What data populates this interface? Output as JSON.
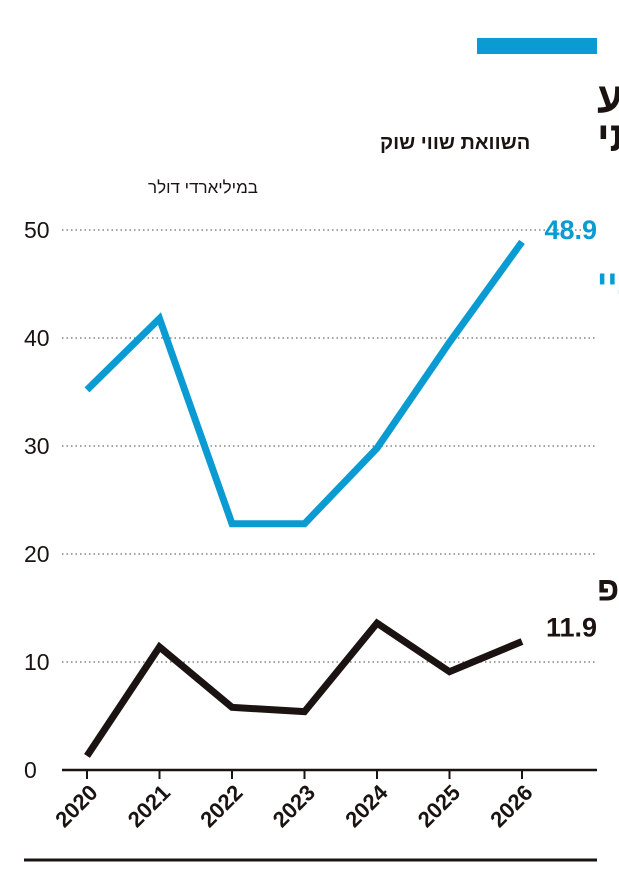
{
  "header": {
    "accent_color": "#0a9bd3",
    "title": "חברת מניית המם רוצה לבלוע",
    "title_line2": "עסק אמיתי",
    "subtitle": "השוואת שווי שוק"
  },
  "chart_data": {
    "type": "line",
    "unit_label": "במיליארדי דולר",
    "categories": [
      "2020",
      "2021",
      "2022",
      "2023",
      "2024",
      "2025",
      "2026"
    ],
    "ylim": [
      0,
      50
    ],
    "yticks": [
      0,
      10,
      20,
      30,
      40,
      50
    ],
    "grid": true,
    "series": [
      {
        "name": "איביי",
        "color": "#0a9bd3",
        "values": [
          35.2,
          41.8,
          22.8,
          22.8,
          29.8,
          39.6,
          48.9
        ],
        "end_label": "48.9"
      },
      {
        "name": "גיימסטופ",
        "color": "#1a1311",
        "values": [
          1.3,
          11.4,
          5.8,
          5.4,
          13.6,
          9.1,
          11.9
        ],
        "end_label": "11.9"
      }
    ]
  }
}
